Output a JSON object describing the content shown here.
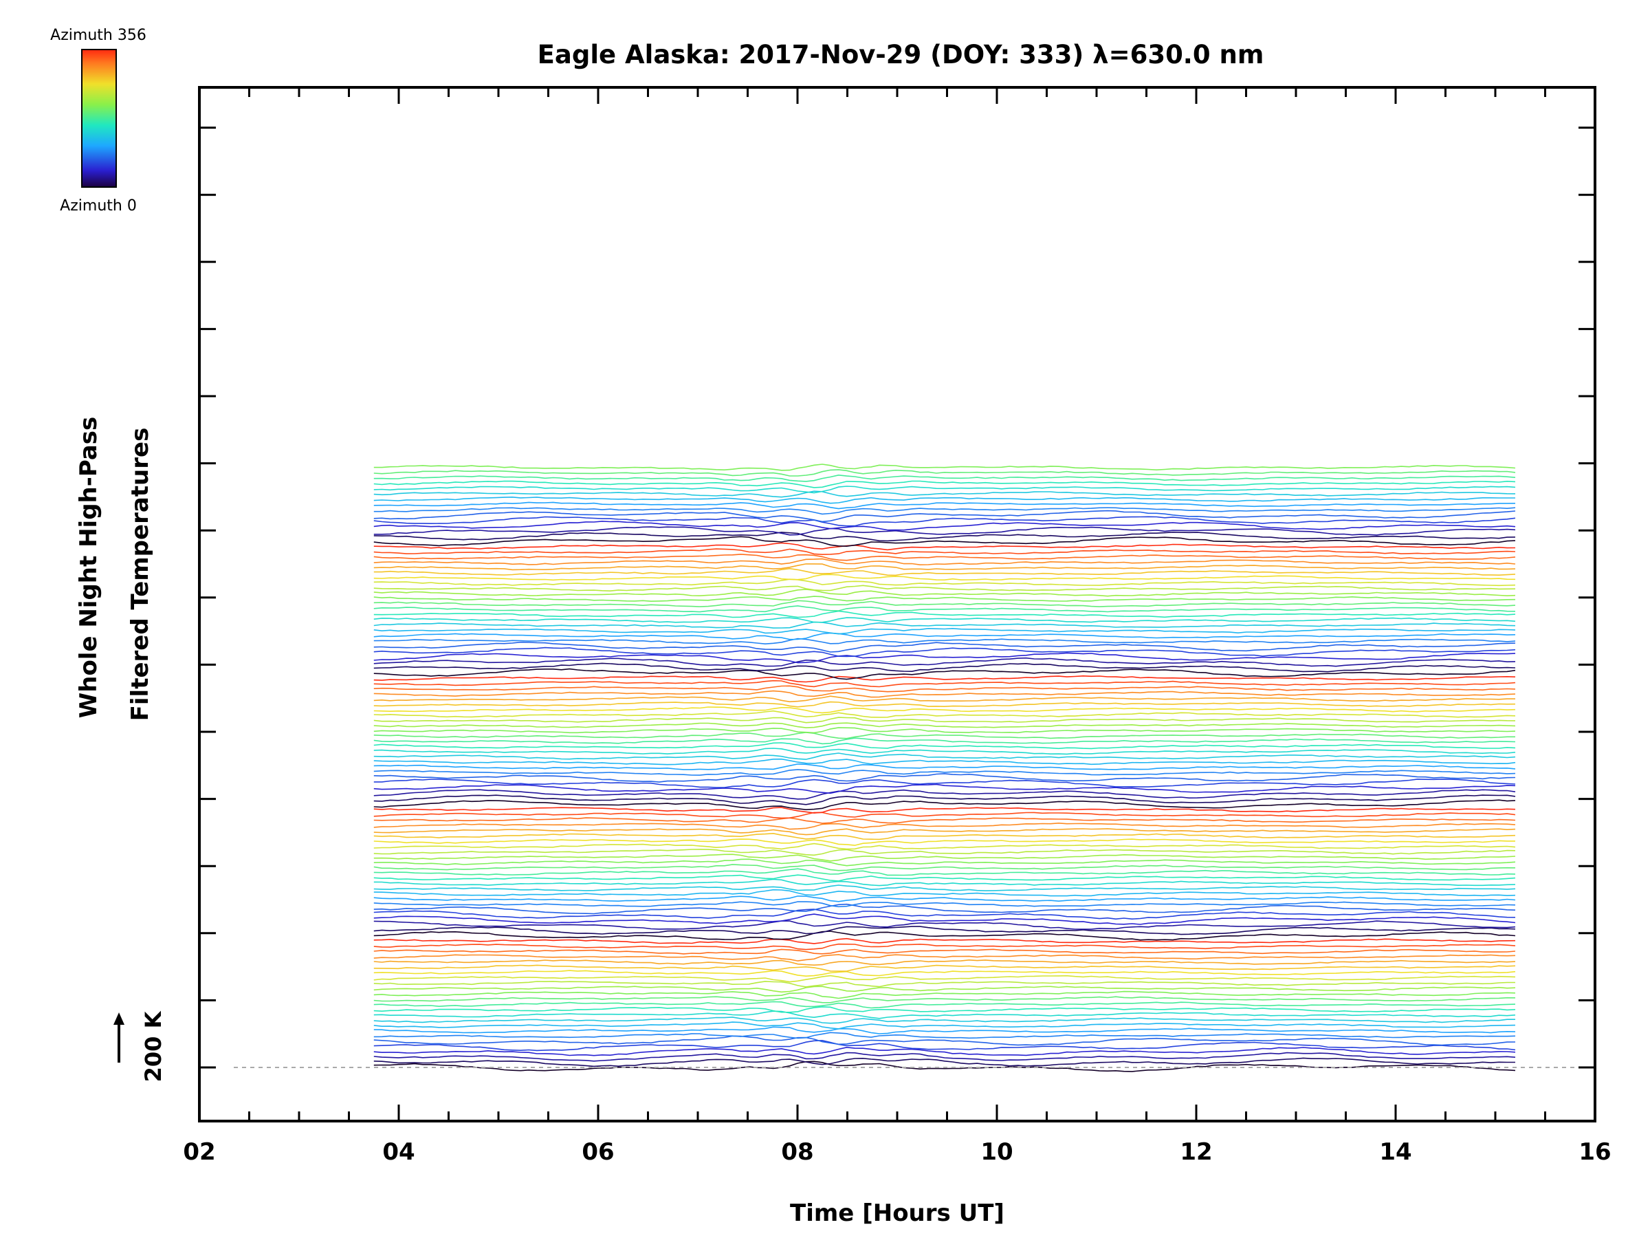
{
  "chart_data": {
    "type": "line",
    "title": "Eagle Alaska: 2017-Nov-29 (DOY: 333) λ=630.0 nm",
    "xlabel": "Time [Hours UT]",
    "ylabel_line1": "Whole Night High-Pass",
    "ylabel_line2": "Filtered Temperatures",
    "xlim": [
      2,
      16
    ],
    "x_tick_labels": [
      "02",
      "04",
      "06",
      "08",
      "10",
      "12",
      "14",
      "16"
    ],
    "x_tick_values": [
      2,
      4,
      6,
      8,
      10,
      12,
      14,
      16
    ],
    "data_time_range": [
      3.75,
      15.2
    ],
    "trace_count": 115,
    "traces_per_azimuth_cycle": 25,
    "trace_spacing_K": 18,
    "scale_bar_label": "200 K",
    "colorbar": {
      "top_label": "Azimuth 356",
      "bottom_label": "Azimuth 0",
      "colormap": "rainbow",
      "range": [
        0,
        356
      ]
    },
    "grid": false,
    "baseline_dashed": true
  },
  "colors": {
    "axis": "#000000",
    "baseline": "#aaaaaa",
    "background": "#ffffff"
  }
}
